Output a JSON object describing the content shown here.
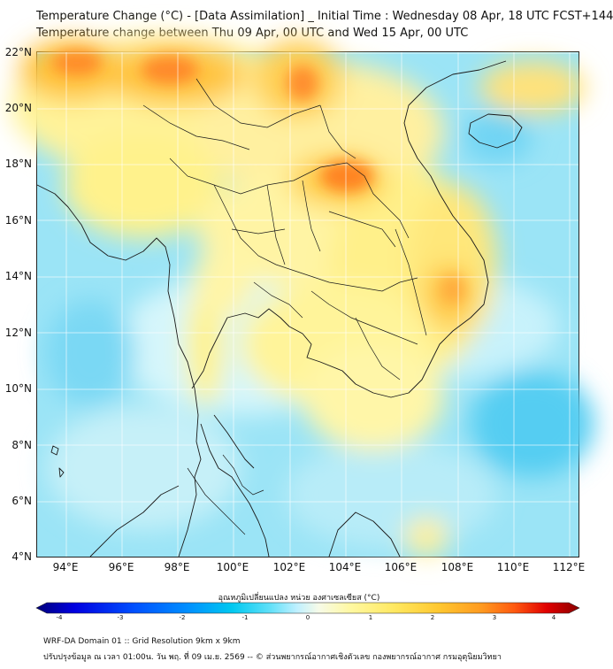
{
  "header": {
    "title_line1": "Temperature Change (°C) - [Data Assimilation] _ Initial Time : Wednesday 08 Apr, 18 UTC FCST+144",
    "title_line2": "Temperature change between Thu 09 Apr, 00 UTC and Wed 15 Apr, 00 UTC"
  },
  "map": {
    "lat_labels": [
      "22°N",
      "20°N",
      "18°N",
      "16°N",
      "14°N",
      "12°N",
      "10°N",
      "8°N",
      "6°N",
      "4°N"
    ],
    "lon_labels": [
      "94°E",
      "96°E",
      "98°E",
      "100°E",
      "102°E",
      "104°E",
      "106°E",
      "108°E",
      "110°E",
      "112°E"
    ],
    "extent": {
      "lon_min": 93,
      "lon_max": 112.3,
      "lat_min": 4,
      "lat_max": 22.2
    },
    "grid": true,
    "colors": {
      "land_border": "#222222",
      "base_field": "#8fe0f5"
    }
  },
  "colorbar": {
    "title": "อุณหภูมิเปลี่ยนแปลง หน่วย องศาเซลเซียส (°C)",
    "tick_labels": [
      "-4",
      "-3",
      "-2",
      "-1",
      "0",
      "1",
      "2",
      "3",
      "4"
    ],
    "range": [
      -4,
      4
    ],
    "colors": [
      "#00007a",
      "#0000e0",
      "#0050ff",
      "#0090ff",
      "#00c8f0",
      "#60e0f8",
      "#bff0ff",
      "#f7fbe8",
      "#fff8a0",
      "#ffe860",
      "#ffc830",
      "#ff9a20",
      "#ff5a10",
      "#e00000",
      "#8a0000"
    ]
  },
  "footer": {
    "line1": "WRF-DA Domain 01 :: Grid Resolution 9km x 9km",
    "line2": "ปรับปรุงข้อมูล ณ เวลา 01:00น. วัน พฤ. ที่ 09 เม.ย. 2569 -- © ส่วนพยากรณ์อากาศเชิงตัวเลข กองพยากรณ์อากาศ กรมอุตุนิยมวิทยา"
  }
}
